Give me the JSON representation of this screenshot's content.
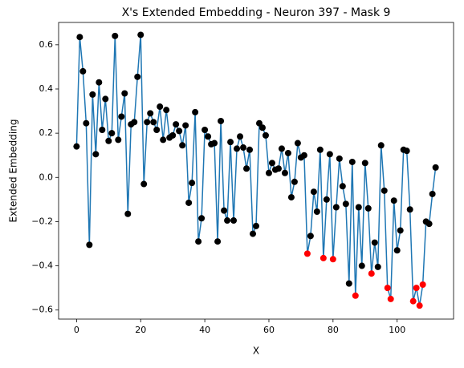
{
  "chart_data": {
    "type": "line",
    "title": "X's Extended Embedding - Neuron 397 - Mask 9",
    "x_label": "X",
    "y_label": "Extended Embedding",
    "x": [
      0,
      1,
      2,
      3,
      4,
      5,
      6,
      7,
      8,
      9,
      10,
      11,
      12,
      13,
      14,
      15,
      16,
      17,
      18,
      19,
      20,
      21,
      22,
      23,
      24,
      25,
      26,
      27,
      28,
      29,
      30,
      31,
      32,
      33,
      34,
      35,
      36,
      37,
      38,
      39,
      40,
      41,
      42,
      43,
      44,
      45,
      46,
      47,
      48,
      49,
      50,
      51,
      52,
      53,
      54,
      55,
      56,
      57,
      58,
      59,
      60,
      61,
      62,
      63,
      64,
      65,
      66,
      67,
      68,
      69,
      70,
      71,
      72,
      73,
      74,
      75,
      76,
      77,
      78,
      79,
      80,
      81,
      82,
      83,
      84,
      85,
      86,
      87,
      88,
      89,
      90,
      91,
      92,
      93,
      94,
      95,
      96,
      97,
      98,
      99,
      100,
      101,
      102,
      103,
      104,
      105,
      106,
      107,
      108,
      109,
      110,
      111,
      112
    ],
    "values": [
      0.14,
      0.635,
      0.48,
      0.245,
      -0.305,
      0.375,
      0.105,
      0.43,
      0.215,
      0.355,
      0.165,
      0.2,
      0.64,
      0.17,
      0.275,
      0.38,
      -0.165,
      0.24,
      0.25,
      0.455,
      0.645,
      -0.03,
      0.25,
      0.29,
      0.25,
      0.215,
      0.32,
      0.17,
      0.305,
      0.18,
      0.19,
      0.24,
      0.21,
      0.145,
      0.235,
      -0.115,
      -0.025,
      0.295,
      -0.29,
      -0.185,
      0.215,
      0.185,
      0.15,
      0.155,
      -0.29,
      0.255,
      -0.15,
      -0.195,
      0.16,
      -0.195,
      0.13,
      0.185,
      0.135,
      0.04,
      0.125,
      -0.255,
      -0.22,
      0.245,
      0.225,
      0.19,
      0.02,
      0.065,
      0.035,
      0.04,
      0.13,
      0.02,
      0.11,
      -0.09,
      -0.02,
      0.155,
      0.09,
      0.1,
      -0.345,
      -0.265,
      -0.065,
      -0.155,
      0.125,
      -0.365,
      -0.1,
      0.105,
      -0.37,
      -0.135,
      0.085,
      -0.04,
      -0.12,
      -0.48,
      0.07,
      -0.535,
      -0.135,
      -0.4,
      0.065,
      -0.14,
      -0.435,
      -0.295,
      -0.405,
      0.145,
      -0.06,
      -0.5,
      -0.55,
      -0.105,
      -0.33,
      -0.24,
      0.125,
      0.12,
      -0.145,
      -0.56,
      -0.5,
      -0.58,
      -0.485,
      -0.2,
      -0.21,
      -0.075,
      0.045
    ],
    "line_color": "#1f77b4",
    "marker_colors": [
      "black",
      "black",
      "black",
      "black",
      "black",
      "black",
      "black",
      "black",
      "black",
      "black",
      "black",
      "black",
      "black",
      "black",
      "black",
      "black",
      "black",
      "black",
      "black",
      "black",
      "black",
      "black",
      "black",
      "black",
      "black",
      "black",
      "black",
      "black",
      "black",
      "black",
      "black",
      "black",
      "black",
      "black",
      "black",
      "black",
      "black",
      "black",
      "black",
      "black",
      "black",
      "black",
      "black",
      "black",
      "black",
      "black",
      "black",
      "black",
      "black",
      "black",
      "black",
      "black",
      "black",
      "black",
      "black",
      "black",
      "black",
      "black",
      "black",
      "black",
      "black",
      "black",
      "black",
      "black",
      "black",
      "black",
      "black",
      "black",
      "black",
      "black",
      "black",
      "black",
      "red",
      "black",
      "black",
      "black",
      "black",
      "red",
      "black",
      "black",
      "red",
      "black",
      "black",
      "black",
      "black",
      "black",
      "black",
      "red",
      "black",
      "black",
      "black",
      "black",
      "red",
      "black",
      "black",
      "black",
      "black",
      "red",
      "red",
      "black",
      "black",
      "black",
      "black",
      "black",
      "black",
      "red",
      "red",
      "red",
      "red",
      "black",
      "black",
      "black",
      "black"
    ],
    "xlim": [
      -5.6,
      117.6
    ],
    "ylim": [
      -0.641,
      0.701
    ],
    "xticks": [
      0,
      20,
      40,
      60,
      80,
      100
    ],
    "yticks": [
      {
        "value": -0.6,
        "label": "−0.6"
      },
      {
        "value": -0.4,
        "label": "−0.4"
      },
      {
        "value": -0.2,
        "label": "−0.2"
      },
      {
        "value": 0,
        "label": "0.0"
      },
      0.2,
      0.4,
      0.6
    ]
  }
}
